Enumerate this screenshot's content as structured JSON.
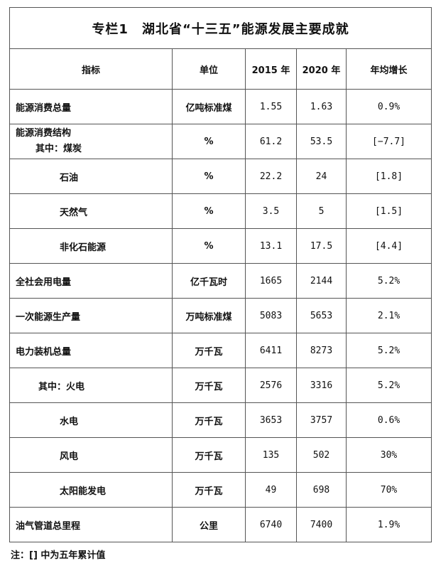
{
  "title": "专栏1　湖北省“十三五”能源发展主要成就",
  "headers": [
    "指标",
    "单位",
    "2015 年",
    "2020 年",
    "年均增长"
  ],
  "rows": [
    {
      "name": "能源消费总量",
      "unit": "亿吨标准煤",
      "y2015": "1.55",
      "y2020": "1.63",
      "growth": "0.9%"
    },
    {
      "name": "能源消费结构",
      "sub": "其中：煤炭",
      "unit": "%",
      "y2015": "61.2",
      "y2020": "53.5",
      "growth": "[−7.7]"
    },
    {
      "name": "石油",
      "indent": true,
      "unit": "%",
      "y2015": "22.2",
      "y2020": "24",
      "growth": "[1.8]"
    },
    {
      "name": "天然气",
      "indent": true,
      "unit": "%",
      "y2015": "3.5",
      "y2020": "5",
      "growth": "[1.5]"
    },
    {
      "name": "非化石能源",
      "indent": true,
      "unit": "%",
      "y2015": "13.1",
      "y2020": "17.5",
      "growth": "[4.4]"
    },
    {
      "name": "全社会用电量",
      "unit": "亿千瓦时",
      "y2015": "1665",
      "y2020": "2144",
      "growth": "5.2%"
    },
    {
      "name": "一次能源生产量",
      "unit": "万吨标准煤",
      "y2015": "5083",
      "y2020": "5653",
      "growth": "2.1%"
    },
    {
      "name": "电力装机总量",
      "unit": "万千瓦",
      "y2015": "6411",
      "y2020": "8273",
      "growth": "5.2%"
    },
    {
      "name": "其中：火电",
      "indent2": true,
      "unit": "万千瓦",
      "y2015": "2576",
      "y2020": "3316",
      "growth": "5.2%"
    },
    {
      "name": "水电",
      "indent": true,
      "unit": "万千瓦",
      "y2015": "3653",
      "y2020": "3757",
      "growth": "0.6%"
    },
    {
      "name": "风电",
      "indent": true,
      "unit": "万千瓦",
      "y2015": "135",
      "y2020": "502",
      "growth": "30%"
    },
    {
      "name": "太阳能发电",
      "indent": true,
      "unit": "万千瓦",
      "y2015": "49",
      "y2020": "698",
      "growth": "70%"
    },
    {
      "name": "油气管道总里程",
      "unit": "公里",
      "y2015": "6740",
      "y2020": "7400",
      "growth": "1.9%"
    }
  ],
  "note": "注：[] 中为五年累计值"
}
